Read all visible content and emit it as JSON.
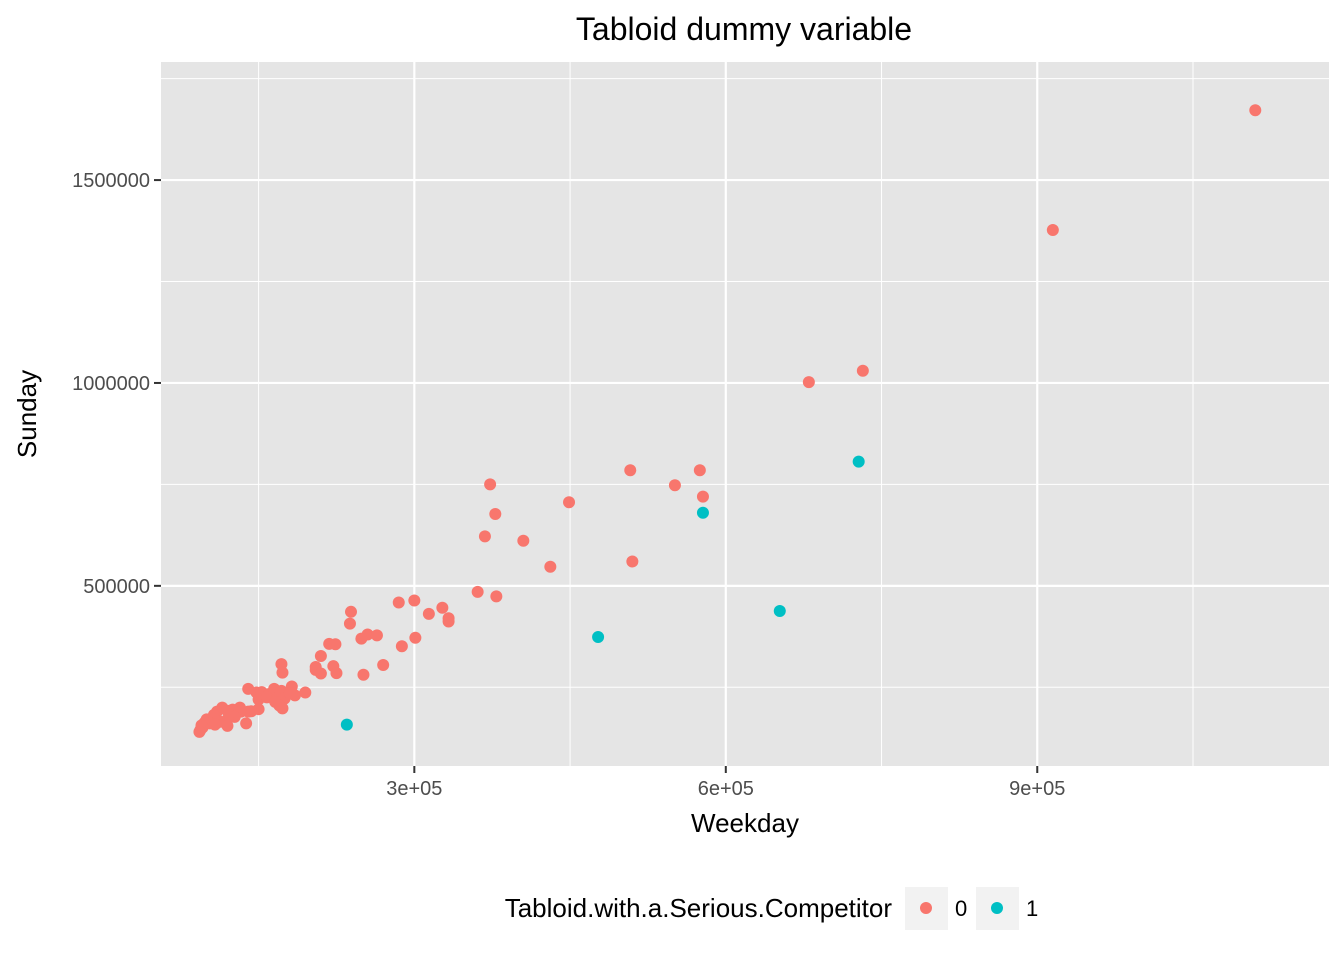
{
  "chart_data": {
    "type": "scatter",
    "title": "Tabloid dummy variable",
    "xlabel": "Weekday",
    "ylabel": "Sunday",
    "xlim": [
      56000,
      1181000
    ],
    "ylim": [
      56000,
      1791000
    ],
    "x_ticks": [
      300000,
      600000,
      900000
    ],
    "x_tick_labels": [
      "3e+05",
      "6e+05",
      "9e+05"
    ],
    "y_ticks": [
      500000,
      1000000,
      1500000
    ],
    "y_tick_labels": [
      "500000",
      "1000000",
      "1500000"
    ],
    "grid": true,
    "panel_background": "#E5E5E5",
    "legend": {
      "title": "Tabloid.with.a.Serious.Competitor",
      "position": "bottom",
      "entries": [
        {
          "label": "0",
          "color": "#F8766D"
        },
        {
          "label": "1",
          "color": "#00BFC4"
        }
      ]
    },
    "series": [
      {
        "name": "0",
        "color": "#F8766D",
        "points": [
          [
            1110000,
            1672000
          ],
          [
            915000,
            1377000
          ],
          [
            732000,
            1030000
          ],
          [
            680000,
            1002000
          ],
          [
            373000,
            750000
          ],
          [
            508000,
            785000
          ],
          [
            575000,
            785000
          ],
          [
            551000,
            748000
          ],
          [
            578000,
            720000
          ],
          [
            449000,
            706000
          ],
          [
            378000,
            677000
          ],
          [
            405000,
            611000
          ],
          [
            368000,
            622000
          ],
          [
            510000,
            560000
          ],
          [
            431000,
            547000
          ],
          [
            361000,
            485000
          ],
          [
            379000,
            474000
          ],
          [
            285000,
            459000
          ],
          [
            300000,
            464000
          ],
          [
            314000,
            431000
          ],
          [
            327000,
            446000
          ],
          [
            333000,
            420000
          ],
          [
            333000,
            412000
          ],
          [
            239000,
            436000
          ],
          [
            238000,
            407000
          ],
          [
            224000,
            356000
          ],
          [
            255000,
            380000
          ],
          [
            249000,
            370000
          ],
          [
            264000,
            378000
          ],
          [
            218000,
            357000
          ],
          [
            301000,
            372000
          ],
          [
            288000,
            351000
          ],
          [
            210000,
            327000
          ],
          [
            172000,
            307000
          ],
          [
            205000,
            300000
          ],
          [
            222000,
            302000
          ],
          [
            205000,
            293000
          ],
          [
            173000,
            286000
          ],
          [
            210000,
            284000
          ],
          [
            225000,
            285000
          ],
          [
            251000,
            281000
          ],
          [
            270000,
            305000
          ],
          [
            140000,
            246000
          ],
          [
            148000,
            237000
          ],
          [
            153000,
            238000
          ],
          [
            160000,
            233000
          ],
          [
            165000,
            246000
          ],
          [
            172000,
            241000
          ],
          [
            177000,
            237000
          ],
          [
            185000,
            230000
          ],
          [
            182000,
            252000
          ],
          [
            195000,
            237000
          ],
          [
            150000,
            220000
          ],
          [
            158000,
            225000
          ],
          [
            168000,
            224000
          ],
          [
            175000,
            222000
          ],
          [
            180000,
            235000
          ],
          [
            166000,
            214000
          ],
          [
            170000,
            205000
          ],
          [
            173000,
            198000
          ],
          [
            150000,
            196000
          ],
          [
            143000,
            191000
          ],
          [
            140000,
            190000
          ],
          [
            132000,
            200000
          ],
          [
            125000,
            195000
          ],
          [
            115000,
            200000
          ],
          [
            110000,
            190000
          ],
          [
            107000,
            182000
          ],
          [
            120000,
            192000
          ],
          [
            133000,
            190000
          ],
          [
            127000,
            177000
          ],
          [
            120000,
            171000
          ],
          [
            113000,
            165000
          ],
          [
            107000,
            172000
          ],
          [
            100000,
            171000
          ],
          [
            103000,
            161000
          ],
          [
            98000,
            163000
          ],
          [
            95000,
            156000
          ],
          [
            96000,
            151000
          ],
          [
            94000,
            145000
          ],
          [
            108000,
            158000
          ],
          [
            120000,
            155000
          ],
          [
            138000,
            161000
          ],
          [
            93000,
            140000
          ]
        ]
      },
      {
        "name": "1",
        "color": "#00BFC4",
        "points": [
          [
            728000,
            806000
          ],
          [
            578000,
            680000
          ],
          [
            652000,
            438000
          ],
          [
            477000,
            374000
          ],
          [
            235000,
            158000
          ]
        ]
      }
    ]
  }
}
